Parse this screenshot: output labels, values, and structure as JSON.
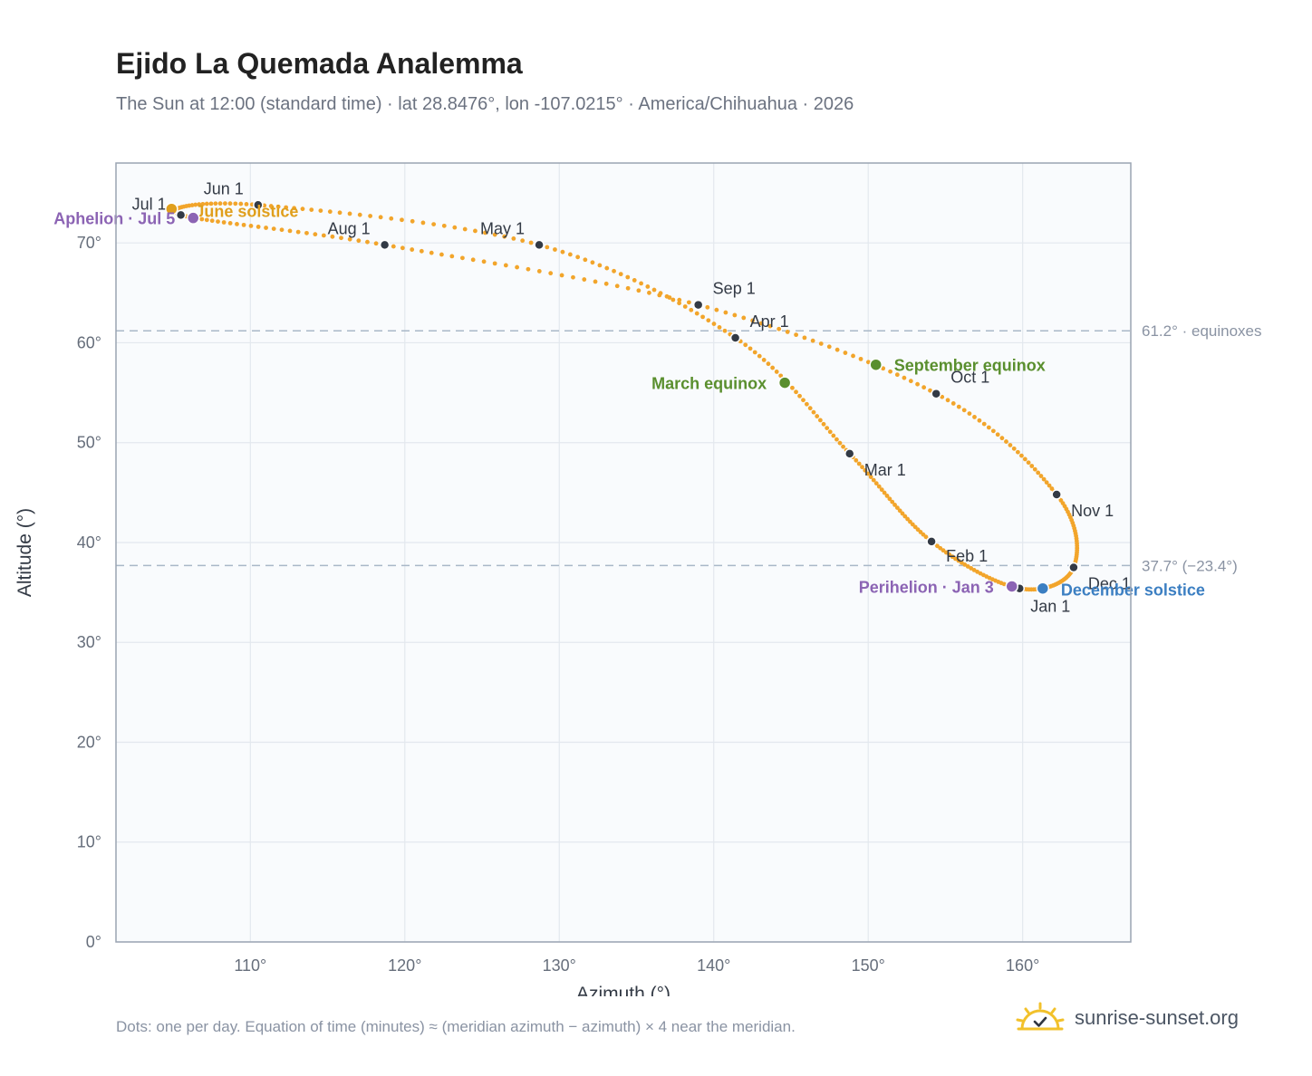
{
  "page": {
    "title": "Ejido La Quemada Analemma",
    "subtitle": "The Sun at 12:00 (standard time) · lat 28.8476°, lon -107.0215° · America/Chihuahua · 2026",
    "footnote": "Dots: one per day. Equation of time (minutes) ≈ (meridian azimuth − azimuth) × 4 near the meridian.",
    "brand": "sunrise-sunset.org",
    "icon": "sun-logo-icon"
  },
  "colors": {
    "curve": "#f2a52b",
    "month_dot": "#333a45",
    "equinox": "#5a8f2e",
    "december": "#3c7fc2",
    "june": "#e09f1c",
    "aphelion": "#8c64b4",
    "perihelion": "#8c64b4",
    "plot_bg": "#f9fbfd",
    "grid": "#e3e8ee",
    "frame": "#9aa4b2",
    "ref_line": "#a9b8c8"
  },
  "chart_data": {
    "type": "scatter",
    "title": "Ejido La Quemada Analemma",
    "xlabel": "Azimuth (°)",
    "ylabel": "Altitude (°)",
    "xlim": [
      101.3,
      167
    ],
    "ylim": [
      0,
      78
    ],
    "grid": true,
    "x_ticks": [
      110,
      120,
      130,
      140,
      150,
      160
    ],
    "x_tick_labels": [
      "110°",
      "120°",
      "130°",
      "140°",
      "150°",
      "160°"
    ],
    "y_ticks": [
      0,
      10,
      20,
      30,
      40,
      50,
      60,
      70
    ],
    "y_tick_labels": [
      "0°",
      "10°",
      "20°",
      "30°",
      "40°",
      "50°",
      "60°",
      "70°"
    ],
    "reference_lines": [
      {
        "y": 61.2,
        "label": "61.2° · equinoxes"
      },
      {
        "y": 37.7,
        "label": "37.7° (−23.4°)"
      }
    ],
    "month_points": [
      {
        "label": "Jan 1",
        "azimuth": 159.8,
        "altitude": 35.4
      },
      {
        "label": "Feb 1",
        "azimuth": 154.1,
        "altitude": 40.1
      },
      {
        "label": "Mar 1",
        "azimuth": 148.8,
        "altitude": 48.9
      },
      {
        "label": "Apr 1",
        "azimuth": 141.4,
        "altitude": 60.5
      },
      {
        "label": "May 1",
        "azimuth": 128.7,
        "altitude": 69.8
      },
      {
        "label": "Jun 1",
        "azimuth": 110.5,
        "altitude": 73.8
      },
      {
        "label": "Jul 1",
        "azimuth": 105.5,
        "altitude": 72.8
      },
      {
        "label": "Aug 1",
        "azimuth": 118.7,
        "altitude": 69.8
      },
      {
        "label": "Sep 1",
        "azimuth": 139.0,
        "altitude": 63.8
      },
      {
        "label": "Oct 1",
        "azimuth": 154.4,
        "altitude": 54.9
      },
      {
        "label": "Nov 1",
        "azimuth": 162.2,
        "altitude": 44.8
      },
      {
        "label": "Dec 1",
        "azimuth": 163.3,
        "altitude": 37.5
      }
    ],
    "events": [
      {
        "label": "March equinox",
        "azimuth": 144.6,
        "altitude": 56.0
      },
      {
        "label": "June solstice",
        "azimuth": 104.9,
        "altitude": 73.4
      },
      {
        "label": "September equinox",
        "azimuth": 150.5,
        "altitude": 57.8
      },
      {
        "label": "December solstice",
        "azimuth": 161.3,
        "altitude": 35.4
      },
      {
        "label": "Aphelion · Jul 5",
        "azimuth": 106.3,
        "altitude": 72.5
      },
      {
        "label": "Perihelion · Jan 3",
        "azimuth": 159.3,
        "altitude": 35.6
      }
    ]
  }
}
